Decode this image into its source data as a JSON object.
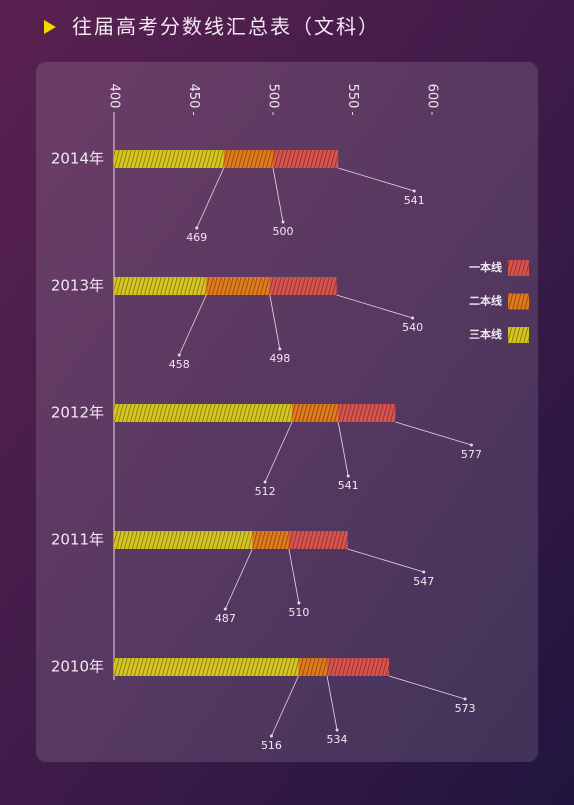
{
  "chart_data": {
    "type": "bar",
    "orientation": "horizontal",
    "title": "往届高考分数线汇总表（文科）",
    "categories": [
      "2014年",
      "2013年",
      "2012年",
      "2011年",
      "2010年"
    ],
    "series": [
      {
        "name": "一本线",
        "color": "#d9534f",
        "values": [
          541,
          540,
          577,
          547,
          573
        ]
      },
      {
        "name": "二本线",
        "color": "#e07a1c",
        "values": [
          500,
          498,
          541,
          510,
          534
        ]
      },
      {
        "name": "三本线",
        "color": "#d6c521",
        "values": [
          469,
          458,
          512,
          487,
          516
        ]
      }
    ],
    "xlim": [
      400,
      600
    ],
    "xticks": [
      400,
      450,
      500,
      550,
      600
    ],
    "legend": "right"
  }
}
